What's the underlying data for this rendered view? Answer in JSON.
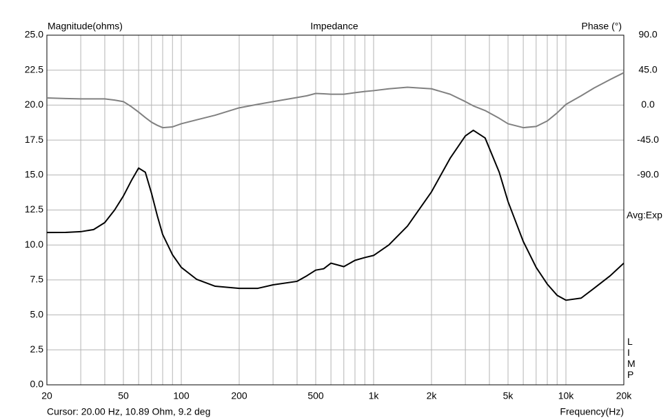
{
  "chart_data": {
    "type": "line",
    "title": "Impedance",
    "y_label": "Magnitude(ohms)",
    "y2_label": "Phase (°)",
    "x_label": "Frequency(Hz)",
    "annotations": [
      "Avg:Exp",
      "LIMP"
    ],
    "cursor": "Cursor: 20.00 Hz, 10.89 Ohm, 9.2 deg",
    "x_log": true,
    "grid": true,
    "xlim": [
      20,
      20000
    ],
    "xticks": [
      20,
      50,
      100,
      200,
      500,
      {
        "value": 1000,
        "label": "1k"
      },
      {
        "value": 2000,
        "label": "2k"
      },
      {
        "value": 5000,
        "label": "5k"
      },
      {
        "value": 10000,
        "label": "10k"
      },
      {
        "value": 20000,
        "label": "20k"
      }
    ],
    "x_grid": [
      20,
      30,
      40,
      50,
      60,
      70,
      80,
      90,
      100,
      200,
      300,
      400,
      500,
      600,
      700,
      800,
      900,
      1000,
      2000,
      3000,
      4000,
      5000,
      6000,
      7000,
      8000,
      9000,
      10000,
      20000
    ],
    "ylim": [
      0,
      25
    ],
    "yticks": [
      {
        "value": 0,
        "label": "0.0"
      },
      2.5,
      {
        "value": 5,
        "label": "5.0"
      },
      7.5,
      {
        "value": 10,
        "label": "10.0"
      },
      12.5,
      {
        "value": 15,
        "label": "15.0"
      },
      17.5,
      {
        "value": 20,
        "label": "20.0"
      },
      22.5,
      {
        "value": 25,
        "label": "25.0"
      }
    ],
    "y2lim": [
      -360,
      90
    ],
    "y2ticks": [
      {
        "value": 90,
        "label": "90.0"
      },
      {
        "value": 45,
        "label": "45.0"
      },
      {
        "value": 0,
        "label": "0.0"
      },
      {
        "value": -45,
        "label": "-45.0"
      },
      {
        "value": -90,
        "label": "-90.0"
      }
    ],
    "x": [
      20,
      25,
      30,
      35,
      40,
      45,
      50,
      55,
      60,
      65,
      70,
      75,
      80,
      90,
      100,
      120,
      150,
      200,
      250,
      300,
      400,
      450,
      500,
      550,
      600,
      700,
      800,
      900,
      1000,
      1200,
      1500,
      2000,
      2500,
      3000,
      3300,
      3800,
      4500,
      5000,
      6000,
      7000,
      8000,
      9000,
      10000,
      12000,
      14000,
      17000,
      20000
    ],
    "series": [
      {
        "color": "#000000",
        "values": [
          10.89,
          10.9,
          10.95,
          11.1,
          11.6,
          12.5,
          13.5,
          14.6,
          15.5,
          15.2,
          13.7,
          12.1,
          10.75,
          9.3,
          8.4,
          7.55,
          7.05,
          6.9,
          6.9,
          7.15,
          7.4,
          7.8,
          8.2,
          8.3,
          8.7,
          8.45,
          8.9,
          9.1,
          9.25,
          10.0,
          11.35,
          13.8,
          16.2,
          17.8,
          18.2,
          17.65,
          15.2,
          13.1,
          10.25,
          8.4,
          7.2,
          6.4,
          6.05,
          6.2,
          6.9,
          7.8,
          8.7
        ]
      },
      {
        "color": "#808080",
        "axis": "y2",
        "values": [
          9.2,
          8.5,
          8,
          8,
          8,
          6.5,
          4.5,
          -2,
          -9,
          -16,
          -22,
          -26,
          -29,
          -28,
          -24,
          -19,
          -13,
          -3.5,
          1,
          4.5,
          9.8,
          12,
          15,
          14.5,
          14,
          14,
          16,
          17.5,
          18.6,
          21,
          23,
          21,
          14,
          4.5,
          -1,
          -7,
          -17,
          -24,
          -29,
          -27.5,
          -20.4,
          -10,
          0.9,
          12,
          22,
          33,
          41.7
        ]
      }
    ]
  }
}
